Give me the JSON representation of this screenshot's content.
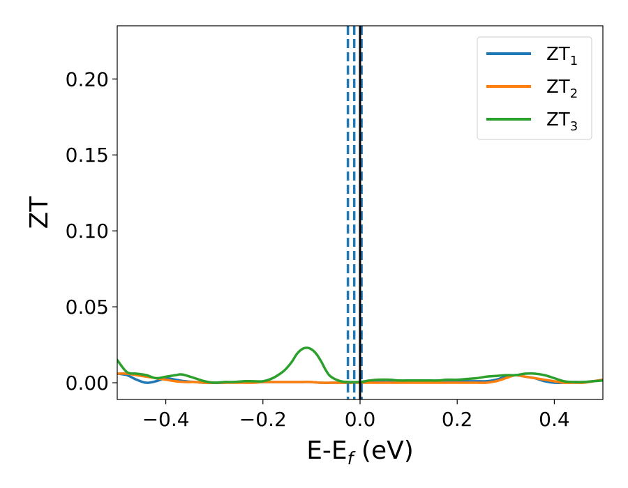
{
  "chart_data": {
    "type": "line",
    "title": "",
    "xlabel": "E-E",
    "xlabel_sub": "f",
    "xlabel_unit": " (eV)",
    "ylabel": "ZT",
    "xlim": [
      -0.5,
      0.5
    ],
    "ylim": [
      -0.011,
      0.235
    ],
    "x_ticks": [
      -0.4,
      -0.2,
      0.0,
      0.2,
      0.4
    ],
    "x_tick_labels": [
      "−0.4",
      "−0.2",
      "0.0",
      "0.2",
      "0.4"
    ],
    "y_ticks": [
      0.0,
      0.05,
      0.1,
      0.15,
      0.2
    ],
    "y_tick_labels": [
      "0.00",
      "0.05",
      "0.10",
      "0.15",
      "0.20"
    ],
    "grid": false,
    "legend_position": "top-right",
    "vlines": [
      {
        "x": -0.025,
        "style": "dashed",
        "color": "#1f77b4"
      },
      {
        "x": -0.012,
        "style": "dashed",
        "color": "#1f77b4"
      },
      {
        "x": 0.003,
        "style": "dashed",
        "color": "#1f77b4"
      },
      {
        "x": 0.0,
        "style": "solid",
        "color": "#000000"
      }
    ],
    "series": [
      {
        "name": "ZT",
        "name_sub": "1",
        "color": "#1f77b4",
        "x": [
          -0.5,
          -0.48,
          -0.46,
          -0.44,
          -0.42,
          -0.4,
          -0.38,
          -0.36,
          -0.34,
          -0.32,
          -0.3,
          -0.28,
          -0.26,
          -0.24,
          -0.22,
          -0.2,
          -0.18,
          -0.16,
          -0.14,
          -0.12,
          -0.1,
          -0.08,
          -0.06,
          -0.04,
          -0.02,
          0.0,
          0.02,
          0.04,
          0.06,
          0.08,
          0.1,
          0.12,
          0.14,
          0.16,
          0.18,
          0.2,
          0.22,
          0.24,
          0.26,
          0.28,
          0.3,
          0.32,
          0.34,
          0.36,
          0.38,
          0.4,
          0.42,
          0.44,
          0.46,
          0.48,
          0.5
        ],
        "values": [
          0.006,
          0.005,
          0.002,
          0.0,
          0.001,
          0.003,
          0.002,
          0.001,
          0.0005,
          0.0,
          0.0,
          0.0,
          0.0005,
          0.0005,
          0.0005,
          0.0005,
          0.0005,
          0.0005,
          0.0005,
          0.0005,
          0.0005,
          0.0,
          0.0,
          0.0,
          0.0,
          0.0005,
          0.0005,
          0.0005,
          0.0005,
          0.0005,
          0.0005,
          0.0005,
          0.0005,
          0.0005,
          0.0005,
          0.001,
          0.001,
          0.001,
          0.001,
          0.002,
          0.004,
          0.005,
          0.004,
          0.003,
          0.001,
          0.0,
          0.0,
          0.0005,
          0.0005,
          0.001,
          0.002
        ]
      },
      {
        "name": "ZT",
        "name_sub": "2",
        "color": "#ff7f0e",
        "x": [
          -0.5,
          -0.48,
          -0.46,
          -0.44,
          -0.42,
          -0.4,
          -0.38,
          -0.36,
          -0.34,
          -0.32,
          -0.3,
          -0.28,
          -0.26,
          -0.24,
          -0.22,
          -0.2,
          -0.18,
          -0.16,
          -0.14,
          -0.12,
          -0.1,
          -0.08,
          -0.06,
          -0.04,
          -0.02,
          0.0,
          0.02,
          0.04,
          0.06,
          0.08,
          0.1,
          0.12,
          0.14,
          0.16,
          0.18,
          0.2,
          0.22,
          0.24,
          0.26,
          0.28,
          0.3,
          0.32,
          0.34,
          0.36,
          0.38,
          0.4,
          0.42,
          0.44,
          0.46,
          0.48,
          0.5
        ],
        "values": [
          0.006,
          0.006,
          0.005,
          0.004,
          0.003,
          0.002,
          0.001,
          0.0005,
          0.0005,
          0.0,
          0.0,
          0.0,
          0.0,
          0.0,
          0.0,
          0.0005,
          0.0005,
          0.0005,
          0.0005,
          0.0005,
          0.0005,
          0.0,
          0.0,
          0.0,
          0.0,
          0.0,
          0.0,
          0.0,
          0.0,
          0.0,
          0.0,
          0.0,
          0.0,
          0.0,
          0.0,
          0.0,
          0.0,
          0.0,
          0.0,
          0.001,
          0.003,
          0.005,
          0.004,
          0.003,
          0.002,
          0.001,
          0.0,
          0.0,
          0.0,
          0.001,
          0.002
        ]
      },
      {
        "name": "ZT",
        "name_sub": "3",
        "color": "#2ca02c",
        "x": [
          -0.5,
          -0.48,
          -0.46,
          -0.44,
          -0.42,
          -0.4,
          -0.38,
          -0.37,
          -0.36,
          -0.34,
          -0.32,
          -0.3,
          -0.28,
          -0.26,
          -0.24,
          -0.22,
          -0.2,
          -0.18,
          -0.16,
          -0.15,
          -0.14,
          -0.13,
          -0.12,
          -0.11,
          -0.1,
          -0.09,
          -0.08,
          -0.07,
          -0.06,
          -0.04,
          -0.02,
          0.0,
          0.02,
          0.04,
          0.06,
          0.08,
          0.1,
          0.12,
          0.14,
          0.16,
          0.18,
          0.2,
          0.22,
          0.24,
          0.26,
          0.28,
          0.3,
          0.32,
          0.34,
          0.36,
          0.38,
          0.4,
          0.42,
          0.44,
          0.46,
          0.48,
          0.5
        ],
        "values": [
          0.015,
          0.007,
          0.006,
          0.005,
          0.003,
          0.004,
          0.005,
          0.0055,
          0.005,
          0.003,
          0.001,
          0.0,
          0.0005,
          0.0005,
          0.001,
          0.001,
          0.001,
          0.003,
          0.007,
          0.01,
          0.014,
          0.019,
          0.022,
          0.023,
          0.022,
          0.019,
          0.014,
          0.008,
          0.004,
          0.001,
          0.0005,
          0.0005,
          0.0015,
          0.002,
          0.002,
          0.0015,
          0.0015,
          0.0015,
          0.0015,
          0.0015,
          0.002,
          0.002,
          0.0025,
          0.003,
          0.004,
          0.0045,
          0.005,
          0.005,
          0.006,
          0.006,
          0.005,
          0.003,
          0.001,
          0.0005,
          0.0005,
          0.001,
          0.0015
        ]
      }
    ]
  }
}
